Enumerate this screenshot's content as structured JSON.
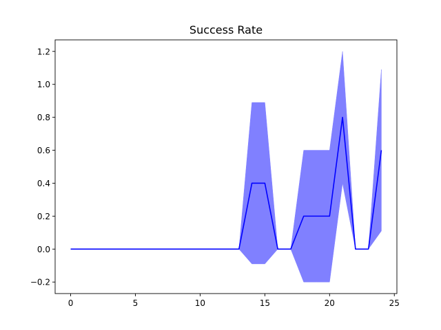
{
  "chart_data": {
    "type": "line",
    "title": "Success Rate",
    "xlabel": "",
    "ylabel": "",
    "xlim": [
      -1.2,
      25.2
    ],
    "ylim": [
      -0.27,
      1.27
    ],
    "x_ticks": [
      0,
      5,
      10,
      15,
      20,
      25
    ],
    "y_ticks": [
      -0.2,
      0.0,
      0.2,
      0.4,
      0.6,
      0.8,
      1.0,
      1.2
    ],
    "y_tick_labels": [
      "−0.2",
      "0.0",
      "0.2",
      "0.4",
      "0.6",
      "0.8",
      "1.0",
      "1.2"
    ],
    "grid": false,
    "legend": "none",
    "series": [
      {
        "x": [
          0,
          1,
          2,
          3,
          4,
          5,
          6,
          7,
          8,
          9,
          10,
          11,
          12,
          13,
          14,
          15,
          16,
          17,
          18,
          19,
          20,
          21,
          22,
          23,
          24
        ],
        "values": [
          0,
          0,
          0,
          0,
          0,
          0,
          0,
          0,
          0,
          0,
          0,
          0,
          0,
          0,
          0.4,
          0.4,
          0,
          0,
          0.2,
          0.2,
          0.2,
          0.8,
          0,
          0,
          0.6
        ],
        "lower": [
          0,
          0,
          0,
          0,
          0,
          0,
          0,
          0,
          0,
          0,
          0,
          0,
          0,
          0,
          -0.09,
          -0.09,
          0,
          0,
          -0.2,
          -0.2,
          -0.2,
          0.4,
          0,
          0,
          0.11
        ],
        "upper": [
          0,
          0,
          0,
          0,
          0,
          0,
          0,
          0,
          0,
          0,
          0,
          0,
          0,
          0,
          0.89,
          0.89,
          0,
          0,
          0.6,
          0.6,
          0.6,
          1.2,
          0,
          0,
          1.09
        ],
        "line_color": "#0000ff",
        "band_color": "#8080ff"
      }
    ]
  }
}
